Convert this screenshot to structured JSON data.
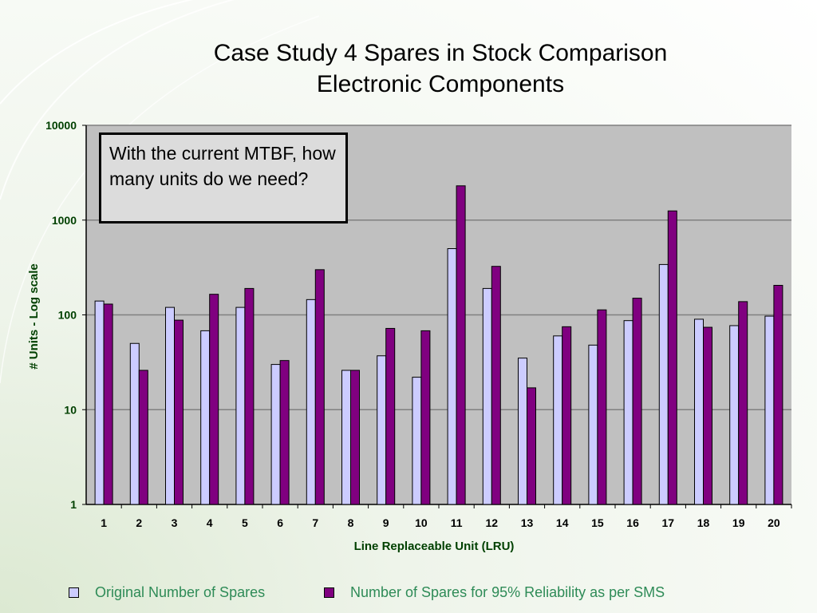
{
  "slide": {
    "title_line1": "Case Study 4  Spares in Stock Comparison",
    "title_line2": "Electronic Components",
    "callout": "With the current MTBF, how many units do we need?"
  },
  "colors": {
    "plot_bg": "#c0c0c0",
    "series1": "#ccccff",
    "series2": "#800080",
    "axis_label": "#004000",
    "legend_text": "#2e8b57"
  },
  "chart_data": {
    "type": "bar",
    "scale": "log",
    "xlabel": "Line Replaceable Unit (LRU)",
    "ylabel": "# Units - Log scale",
    "ylim": [
      1,
      10000
    ],
    "yticks": [
      "1",
      "10",
      "100",
      "1000",
      "10000"
    ],
    "grid": true,
    "legend_position": "bottom",
    "categories": [
      "1",
      "2",
      "3",
      "4",
      "5",
      "6",
      "7",
      "8",
      "9",
      "10",
      "11",
      "12",
      "13",
      "14",
      "15",
      "16",
      "17",
      "18",
      "19",
      "20"
    ],
    "series": [
      {
        "name": "Original Number of Spares",
        "values": [
          140,
          50,
          120,
          68,
          120,
          30,
          145,
          26,
          37,
          22,
          500,
          190,
          35,
          60,
          48,
          87,
          340,
          90,
          77,
          97
        ]
      },
      {
        "name": "Number of Spares for 95% Reliability as per SMS",
        "values": [
          130,
          26,
          88,
          165,
          190,
          33,
          300,
          26,
          72,
          68,
          2300,
          325,
          17,
          75,
          113,
          150,
          1250,
          74,
          138,
          205
        ]
      }
    ]
  }
}
